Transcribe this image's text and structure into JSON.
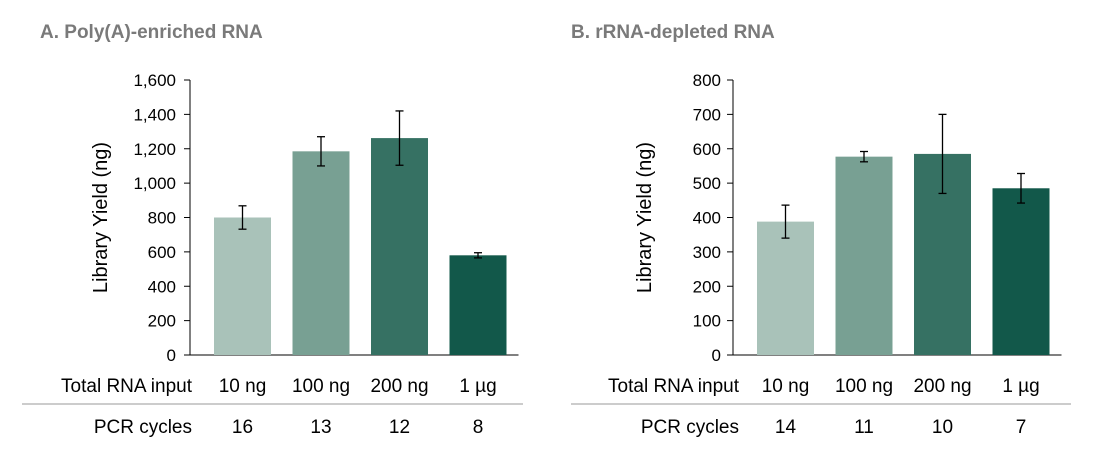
{
  "chart_data": [
    {
      "type": "bar",
      "title": "A. Poly(A)-enriched RNA",
      "ylabel": "Library Yield (ng)",
      "ylim": [
        0,
        1600
      ],
      "yticks": [
        0,
        200,
        400,
        600,
        800,
        1000,
        1200,
        1400,
        1600
      ],
      "ytick_labels": [
        "0",
        "200",
        "400",
        "600",
        "800",
        "1,000",
        "1,200",
        "1,400",
        "1,600"
      ],
      "categories": [
        "10 ng",
        "100 ng",
        "200 ng",
        "1 µg"
      ],
      "values": [
        800,
        1185,
        1262,
        580
      ],
      "errors": [
        68,
        85,
        158,
        15
      ],
      "colors": [
        "#a9c2b9",
        "#78a093",
        "#367163",
        "#12584a"
      ],
      "row1_label": "Total RNA input",
      "row2_label": "PCR cycles",
      "row2_values": [
        "16",
        "13",
        "12",
        "8"
      ],
      "grid": false,
      "legend": "none"
    },
    {
      "type": "bar",
      "title": "B. rRNA-depleted RNA",
      "ylabel": "Library Yield (ng)",
      "ylim": [
        0,
        800
      ],
      "yticks": [
        0,
        100,
        200,
        300,
        400,
        500,
        600,
        700,
        800
      ],
      "ytick_labels": [
        "0",
        "100",
        "200",
        "300",
        "400",
        "500",
        "600",
        "700",
        "800"
      ],
      "categories": [
        "10 ng",
        "100 ng",
        "200 ng",
        "1 µg"
      ],
      "values": [
        388,
        577,
        585,
        485
      ],
      "errors": [
        48,
        15,
        115,
        43
      ],
      "colors": [
        "#a9c2b9",
        "#78a093",
        "#367163",
        "#12584a"
      ],
      "row1_label": "Total RNA input",
      "row2_label": "PCR cycles",
      "row2_values": [
        "14",
        "11",
        "10",
        "7"
      ],
      "grid": false,
      "legend": "none"
    }
  ]
}
